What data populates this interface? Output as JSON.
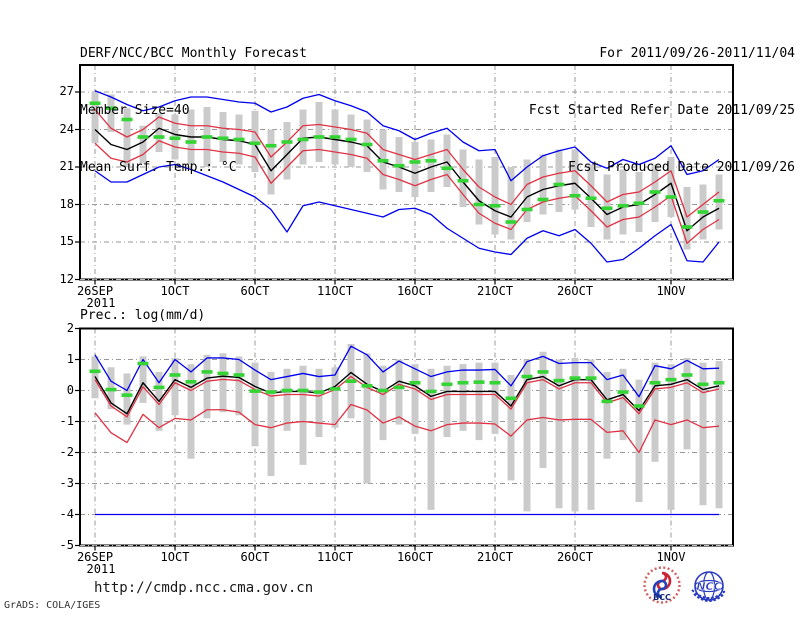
{
  "header": {
    "title": "DERF/NCC/BCC Monthly Forecast",
    "member_size": "Member Size=40",
    "top_chart_label": "Mean Surf. Temp.: °C",
    "for_range": "For 2011/09/26-2011/11/04",
    "fcst_started": "Fcst Started Refer Date 2011/09/25",
    "fcst_produced": "Fcst Produced Date 2011/09/26"
  },
  "bottom_chart_label": "Prec.: log(mm/d)",
  "footer": {
    "url": "http://cmdp.ncc.cma.gov.cn",
    "credit": "GrADS: COLA/IGES",
    "logos": [
      "BCC",
      "NCC"
    ]
  },
  "colors": {
    "envelope": "#0000ee",
    "band": "#e03345",
    "mean": "#000000",
    "obs_dash": "#35d435",
    "bar": "#cbcbcb",
    "grid": "#999999",
    "frame": "#000000"
  },
  "chart_data": [
    {
      "type": "line",
      "title": "Mean Surf. Temp.: °C",
      "ylabel": "°C",
      "ylim": [
        12,
        29.16
      ],
      "yticks": [
        27,
        24,
        21,
        18,
        15,
        12
      ],
      "x_tick_days": [
        0,
        5,
        10,
        15,
        20,
        25,
        30,
        36
      ],
      "x_tick_labels": [
        "26SEP",
        "1OCT",
        "6OCT",
        "11OCT",
        "16OCT",
        "21OCT",
        "26OCT",
        "1NOV"
      ],
      "x_sub_label": "2011",
      "days": 40,
      "series": [
        {
          "name": "ens-max",
          "color": "#0000ee",
          "values": [
            27.1,
            26.6,
            26.0,
            25.5,
            25.8,
            26.3,
            26.6,
            26.6,
            26.4,
            26.2,
            26.1,
            25.4,
            25.8,
            26.5,
            26.8,
            26.3,
            25.9,
            25.4,
            24.3,
            23.9,
            23.2,
            23.7,
            24.1,
            23.0,
            22.3,
            22.4,
            19.9,
            21.0,
            21.9,
            22.3,
            22.6,
            21.4,
            20.9,
            21.6,
            21.2,
            21.7,
            22.7,
            20.4,
            20.7,
            21.6
          ]
        },
        {
          "name": "ens-upper",
          "color": "#e03345",
          "values": [
            25.6,
            24.1,
            23.4,
            24.0,
            25.0,
            24.5,
            24.3,
            24.3,
            24.1,
            24.0,
            23.8,
            21.8,
            23.0,
            24.3,
            24.4,
            24.2,
            24.0,
            23.7,
            22.4,
            22.0,
            21.6,
            22.0,
            22.4,
            20.8,
            19.4,
            18.6,
            18.0,
            19.6,
            20.2,
            20.5,
            20.7,
            19.5,
            18.2,
            18.8,
            19.0,
            19.8,
            20.7,
            17.0,
            18.0,
            19.0
          ]
        },
        {
          "name": "ens-mean",
          "color": "#000000",
          "values": [
            24.0,
            22.8,
            22.4,
            23.0,
            24.1,
            23.6,
            23.4,
            23.4,
            23.2,
            23.1,
            22.8,
            20.7,
            22.0,
            23.3,
            23.4,
            23.2,
            23.0,
            22.7,
            21.4,
            21.0,
            20.5,
            21.0,
            21.4,
            19.8,
            18.3,
            17.5,
            17.0,
            18.6,
            19.2,
            19.5,
            19.7,
            18.5,
            17.2,
            17.8,
            18.0,
            18.8,
            19.7,
            15.9,
            17.0,
            17.7
          ]
        },
        {
          "name": "ens-lower",
          "color": "#e03345",
          "values": [
            22.9,
            21.7,
            21.4,
            22.0,
            23.1,
            22.6,
            22.4,
            22.4,
            22.2,
            22.1,
            21.8,
            19.7,
            21.0,
            22.3,
            22.4,
            22.2,
            22.0,
            21.7,
            20.4,
            20.0,
            19.5,
            20.0,
            20.4,
            18.8,
            17.3,
            16.5,
            16.0,
            17.6,
            18.2,
            18.5,
            18.7,
            17.5,
            16.2,
            16.8,
            17.0,
            17.8,
            18.7,
            14.9,
            16.0,
            16.8
          ]
        },
        {
          "name": "ens-min",
          "color": "#0000ee",
          "values": [
            20.7,
            19.8,
            19.8,
            20.4,
            21.0,
            21.2,
            20.8,
            20.3,
            19.8,
            19.2,
            18.6,
            17.6,
            15.8,
            17.9,
            18.2,
            17.9,
            17.6,
            17.3,
            17.0,
            17.6,
            17.7,
            17.2,
            16.1,
            15.3,
            14.5,
            14.2,
            14.0,
            15.3,
            15.9,
            15.5,
            16.0,
            14.9,
            13.4,
            13.6,
            14.5,
            15.5,
            16.4,
            13.5,
            13.4,
            15.0
          ]
        }
      ],
      "obs_dashes": {
        "name": "green-dash-markers",
        "color": "#35d435",
        "values": [
          26.1,
          25.7,
          24.8,
          23.4,
          23.4,
          23.3,
          23.0,
          23.4,
          23.3,
          23.2,
          22.9,
          22.7,
          23.0,
          23.2,
          23.4,
          23.4,
          23.2,
          22.8,
          21.5,
          21.1,
          21.4,
          21.5,
          20.9,
          19.9,
          18.0,
          17.9,
          16.6,
          17.6,
          18.4,
          19.6,
          18.7,
          18.5,
          17.7,
          17.9,
          18.1,
          19.0,
          18.6,
          16.2,
          17.4,
          18.3
        ]
      },
      "bars": {
        "name": "spread-bars",
        "color": "#cbcbcb",
        "high": [
          27.0,
          26.8,
          25.7,
          24.3,
          25.3,
          25.2,
          25.6,
          25.8,
          25.4,
          25.2,
          25.5,
          24.0,
          24.6,
          25.6,
          26.2,
          25.6,
          25.2,
          24.8,
          24.0,
          23.4,
          23.0,
          23.2,
          23.6,
          22.4,
          21.6,
          21.8,
          21.0,
          21.6,
          22.0,
          22.4,
          22.4,
          21.2,
          20.4,
          20.8,
          20.6,
          21.2,
          21.8,
          19.4,
          19.6,
          20.4
        ],
        "low": [
          22.9,
          23.8,
          21.0,
          21.3,
          22.2,
          21.6,
          21.2,
          21.0,
          21.4,
          21.2,
          20.6,
          18.8,
          20.0,
          21.2,
          21.4,
          21.2,
          21.0,
          20.6,
          19.2,
          19.0,
          18.6,
          19.0,
          19.4,
          17.8,
          16.4,
          15.6,
          15.2,
          16.6,
          17.2,
          17.4,
          17.6,
          16.2,
          15.2,
          15.6,
          15.8,
          16.6,
          17.0,
          14.4,
          15.2,
          16.0
        ]
      }
    },
    {
      "type": "line",
      "title": "Prec.: log(mm/d)",
      "ylabel": "log(mm/d)",
      "ylim": [
        -5,
        2
      ],
      "yticks": [
        2,
        1,
        0,
        -1,
        -2,
        -3,
        -4,
        -5
      ],
      "x_tick_days": [
        0,
        5,
        10,
        15,
        20,
        25,
        30,
        36
      ],
      "x_tick_labels": [
        "26SEP",
        "1OCT",
        "6OCT",
        "11OCT",
        "16OCT",
        "21OCT",
        "26OCT",
        "1NOV"
      ],
      "x_sub_label": "2011",
      "days": 40,
      "series": [
        {
          "name": "ens-max",
          "color": "#0000ee",
          "values": [
            1.15,
            0.3,
            0.0,
            1.0,
            0.25,
            1.0,
            0.6,
            1.05,
            1.05,
            1.0,
            0.66,
            0.35,
            0.45,
            0.55,
            0.45,
            0.5,
            1.43,
            1.15,
            0.6,
            0.95,
            0.7,
            0.45,
            0.6,
            0.66,
            0.66,
            0.68,
            0.15,
            0.93,
            1.1,
            0.87,
            0.9,
            0.9,
            0.35,
            0.5,
            -0.2,
            0.8,
            0.7,
            0.97,
            0.7,
            0.72
          ]
        },
        {
          "name": "ens-upper",
          "color": "#e03345",
          "values": [
            0.35,
            -0.5,
            -0.85,
            0.12,
            -0.45,
            0.25,
            0.0,
            0.3,
            0.36,
            0.32,
            0.03,
            -0.18,
            -0.13,
            -0.13,
            -0.18,
            0.03,
            0.45,
            0.1,
            -0.13,
            0.2,
            0.05,
            -0.29,
            -0.13,
            -0.13,
            -0.13,
            -0.13,
            -0.6,
            0.25,
            0.35,
            0.05,
            0.25,
            0.25,
            -0.4,
            -0.23,
            -0.75,
            0.05,
            0.1,
            0.25,
            -0.07,
            0.05
          ]
        },
        {
          "name": "ens-mean",
          "color": "#000000",
          "values": [
            0.45,
            -0.4,
            -0.75,
            0.25,
            -0.35,
            0.35,
            0.1,
            0.4,
            0.46,
            0.42,
            0.13,
            -0.08,
            -0.03,
            -0.03,
            -0.08,
            0.13,
            0.58,
            0.2,
            -0.03,
            0.3,
            0.15,
            -0.19,
            -0.03,
            -0.03,
            -0.03,
            -0.03,
            -0.5,
            0.35,
            0.45,
            0.15,
            0.35,
            0.35,
            -0.3,
            -0.13,
            -0.65,
            0.15,
            0.2,
            0.35,
            0.03,
            0.15
          ]
        },
        {
          "name": "ens-lower",
          "color": "#e03345",
          "values": [
            -0.72,
            -1.36,
            -1.68,
            -0.77,
            -1.2,
            -0.9,
            -0.95,
            -0.62,
            -0.62,
            -0.7,
            -1.1,
            -1.2,
            -1.05,
            -1.0,
            -1.05,
            -1.1,
            -0.45,
            -0.63,
            -1.05,
            -0.85,
            -1.15,
            -1.3,
            -1.1,
            -1.05,
            -1.05,
            -1.08,
            -1.47,
            -0.95,
            -0.87,
            -0.95,
            -0.93,
            -0.93,
            -1.35,
            -1.3,
            -2.0,
            -0.95,
            -1.1,
            -0.95,
            -1.2,
            -1.15
          ]
        },
        {
          "name": "ens-min",
          "color": "#0000ee",
          "values": [
            -4,
            -4,
            -4,
            -4,
            -4,
            -4,
            -4,
            -4,
            -4,
            -4,
            -4,
            -4,
            -4,
            -4,
            -4,
            -4,
            -4,
            -4,
            -4,
            -4,
            -4,
            -4,
            -4,
            -4,
            -4,
            -4,
            -4,
            -4,
            -4,
            -4,
            -4,
            -4,
            -4,
            -4,
            -4,
            -4,
            -4,
            -4,
            -4,
            -4
          ]
        }
      ],
      "obs_dashes": {
        "name": "green-dash-markers",
        "color": "#35d435",
        "values": [
          0.62,
          0.03,
          -0.15,
          0.87,
          0.1,
          0.5,
          0.28,
          0.6,
          0.55,
          0.5,
          -0.02,
          -0.05,
          0.0,
          0.0,
          -0.05,
          0.05,
          0.3,
          0.15,
          0.0,
          0.1,
          0.25,
          -0.03,
          0.2,
          0.25,
          0.27,
          0.25,
          -0.25,
          0.45,
          0.6,
          0.32,
          0.4,
          0.4,
          -0.35,
          -0.05,
          -0.5,
          0.25,
          0.35,
          0.5,
          0.2,
          0.25
        ]
      },
      "bars": {
        "name": "spread-bars",
        "color": "#cbcbcb",
        "high": [
          1.1,
          0.75,
          0.55,
          1.1,
          0.6,
          1.05,
          0.85,
          1.15,
          1.2,
          1.1,
          0.9,
          0.6,
          0.7,
          0.8,
          0.7,
          0.75,
          1.5,
          1.2,
          0.8,
          1.0,
          0.85,
          0.7,
          0.8,
          0.85,
          0.9,
          0.9,
          0.5,
          1.0,
          1.25,
          1.0,
          1.05,
          1.0,
          0.6,
          0.7,
          0.35,
          0.9,
          0.85,
          1.05,
          0.9,
          0.95
        ],
        "low": [
          -0.25,
          -0.6,
          -1.1,
          -0.4,
          -1.3,
          -0.8,
          -2.2,
          -0.9,
          -0.7,
          -0.8,
          -1.8,
          -2.76,
          -1.3,
          -2.4,
          -1.5,
          -1.2,
          -0.9,
          -3.0,
          -1.6,
          -1.1,
          -1.4,
          -3.85,
          -1.5,
          -1.3,
          -1.6,
          -1.4,
          -2.9,
          -3.9,
          -2.5,
          -3.8,
          -3.9,
          -3.85,
          -2.2,
          -1.6,
          -3.6,
          -2.3,
          -3.85,
          -1.9,
          -3.7,
          -3.8
        ]
      }
    }
  ]
}
